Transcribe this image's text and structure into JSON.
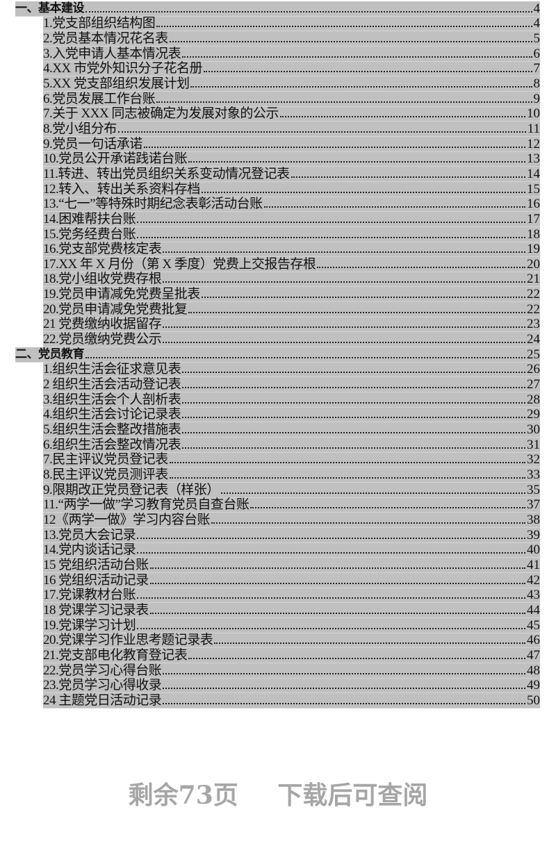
{
  "toc": [
    {
      "type": "section",
      "title": "一、基本建设",
      "page": "4"
    },
    {
      "type": "item",
      "title": "1.党支部组织结构图",
      "page": "4"
    },
    {
      "type": "item",
      "title": "2.党员基本情况花名表",
      "page": "5"
    },
    {
      "type": "item",
      "title": "3.入党申请人基本情况表",
      "page": "6"
    },
    {
      "type": "item",
      "title": "4.XX 市党外知识分子花名册",
      "page": "7"
    },
    {
      "type": "item",
      "title": "5.XX 党支部组织发展计划",
      "page": "8"
    },
    {
      "type": "item",
      "title": "6.党员发展工作台账",
      "page": "9"
    },
    {
      "type": "item",
      "title": "7.关于 XXX 同志被确定为发展对象的公示",
      "page": "10"
    },
    {
      "type": "item",
      "title": "8.党小组分布",
      "page": "11"
    },
    {
      "type": "item",
      "title": "9.党员一句话承诺",
      "page": "12"
    },
    {
      "type": "item",
      "title": "10.党员公开承诺践诺台账",
      "page": "13"
    },
    {
      "type": "item",
      "title": "11.转进、转出党员组织关系变动情况登记表",
      "page": "14"
    },
    {
      "type": "item",
      "title": "12.转入、转出关系资料存档",
      "page": "15"
    },
    {
      "type": "item",
      "title": "13.“七一”等特殊时期纪念表彰活动台账",
      "page": "16"
    },
    {
      "type": "item",
      "title": "14.困难帮扶台账",
      "page": "17"
    },
    {
      "type": "item",
      "title": "15.党务经费台账",
      "page": "18"
    },
    {
      "type": "item",
      "title": "16.党支部党费核定表",
      "page": "19"
    },
    {
      "type": "item",
      "title": "17.XX 年 X 月份（第 X 季度）党费上交报告存根",
      "page": "20"
    },
    {
      "type": "item",
      "title": "18.党小组收党费存根",
      "page": "21"
    },
    {
      "type": "item",
      "title": "19.党员申请减免党费呈批表",
      "page": "22"
    },
    {
      "type": "item",
      "title": "20.党员申请减免党费批复",
      "page": "22"
    },
    {
      "type": "item",
      "title": "21 党费缴纳收据留存",
      "page": "23"
    },
    {
      "type": "item",
      "title": "22.党员缴纳党费公示",
      "page": "24"
    },
    {
      "type": "section",
      "title": "二、党员教育",
      "page": "25"
    },
    {
      "type": "item",
      "title": "1.组织生活会征求意见表",
      "page": "26"
    },
    {
      "type": "item",
      "title": "2 组织生活会活动登记表",
      "page": "27"
    },
    {
      "type": "item",
      "title": "3.组织生活会个人剖析表",
      "page": "28"
    },
    {
      "type": "item",
      "title": "4.组织生活会讨论记录表",
      "page": "29"
    },
    {
      "type": "item",
      "title": "5.组织生活会整改措施表",
      "page": "30"
    },
    {
      "type": "item",
      "title": "6.组织生活会整改情况表",
      "page": "31"
    },
    {
      "type": "item",
      "title": "7.民主评议党员登记表",
      "page": "32"
    },
    {
      "type": "item",
      "title": "8.民主评议党员测评表",
      "page": "33"
    },
    {
      "type": "item",
      "title": "9.限期改正党员登记表（样张）",
      "page": "35"
    },
    {
      "type": "item",
      "title": "11.“两学一做”学习教育党员自查台账",
      "page": "37"
    },
    {
      "type": "item",
      "title": "12《两学一做》学习内容台账",
      "page": "38"
    },
    {
      "type": "item",
      "title": "13.党员大会记录",
      "page": "39"
    },
    {
      "type": "item",
      "title": "14.党内谈话记录",
      "page": "40"
    },
    {
      "type": "item",
      "title": "15 党组织活动台账",
      "page": "41"
    },
    {
      "type": "item",
      "title": "16 党组织活动记录",
      "page": "42"
    },
    {
      "type": "item",
      "title": "17.党课教材台账",
      "page": "43"
    },
    {
      "type": "item",
      "title": "18 党课学习记录表",
      "page": "44"
    },
    {
      "type": "item",
      "title": "19.党课学习计划",
      "page": "45"
    },
    {
      "type": "item",
      "title": "20.党课学习作业思考题记录表",
      "page": "46"
    },
    {
      "type": "item",
      "title": "21.党支部电化教育登记表",
      "page": "47"
    },
    {
      "type": "item",
      "title": "22.党员学习心得台账",
      "page": "48"
    },
    {
      "type": "item",
      "title": "23.党员学习心得收录",
      "page": "49"
    },
    {
      "type": "item",
      "title": "24 主题党日活动记录",
      "page": "50"
    }
  ],
  "footer": {
    "remaining": "剩余73页",
    "download": "下载后可查阅"
  },
  "colors": {
    "highlight": "#c0c0c0",
    "footer_text": "#a6a6a6"
  }
}
